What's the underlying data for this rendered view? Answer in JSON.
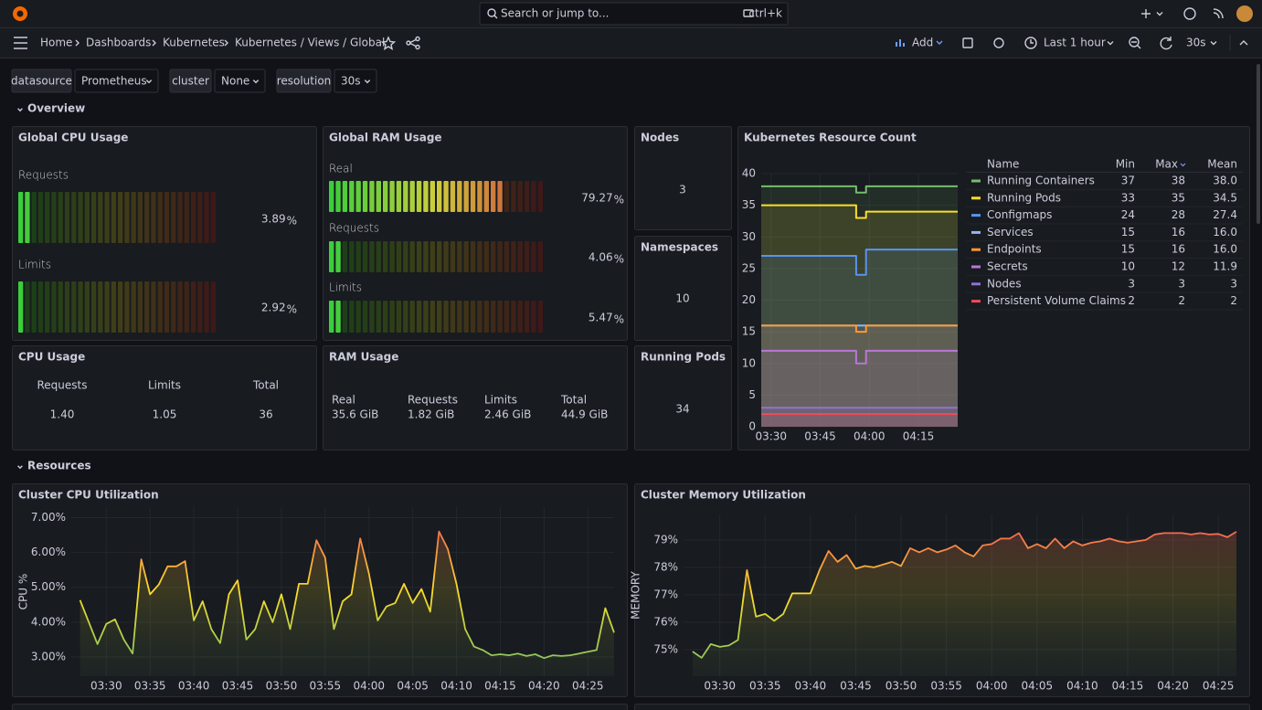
{
  "topbar": {
    "search": "Search or jump to...",
    "shortcut": "ctrl+k"
  },
  "breadcrumb": [
    "Home",
    "Dashboards",
    "Kubernetes",
    "Kubernetes / Views / Global"
  ],
  "toolbar": {
    "add": "Add",
    "time_range": "Last 1 hour",
    "refresh": "30s"
  },
  "variables": [
    {
      "label": "datasource",
      "value": "Prometheus"
    },
    {
      "label": "cluster",
      "value": "None"
    },
    {
      "label": "resolution",
      "value": "30s"
    }
  ],
  "sections": [
    "Overview",
    "Resources"
  ],
  "global_cpu": {
    "title": "Global CPU Usage",
    "min": 0,
    "max": 100,
    "gauges": [
      {
        "name": "Requests",
        "value": 3.89,
        "unit": "%",
        "color": "#73bf69"
      },
      {
        "name": "Limits",
        "value": 2.92,
        "unit": "%",
        "color": "#73bf69"
      }
    ]
  },
  "global_ram": {
    "title": "Global RAM Usage",
    "min": 0,
    "max": 100,
    "gauges": [
      {
        "name": "Real",
        "value": 79.27,
        "unit": "%",
        "color": "#f2734a"
      },
      {
        "name": "Requests",
        "value": 4.06,
        "unit": "%",
        "color": "#73bf69"
      },
      {
        "name": "Limits",
        "value": 5.47,
        "unit": "%",
        "color": "#73bf69"
      }
    ]
  },
  "stats": [
    {
      "title": "Nodes",
      "value": 3
    },
    {
      "title": "Namespaces",
      "value": 10
    },
    {
      "title": "Running Pods",
      "value": 34
    }
  ],
  "cpu_usage": {
    "title": "CPU Usage",
    "items": [
      {
        "label": "Requests",
        "value": "1.40"
      },
      {
        "label": "Limits",
        "value": "1.05"
      },
      {
        "label": "Total",
        "value": "36"
      }
    ]
  },
  "ram_usage": {
    "title": "RAM Usage",
    "items": [
      {
        "label": "Real",
        "value": "35.6 GiB"
      },
      {
        "label": "Requests",
        "value": "1.82 GiB"
      },
      {
        "label": "Limits",
        "value": "2.46 GiB"
      },
      {
        "label": "Total",
        "value": "44.9 GiB"
      }
    ]
  },
  "resource_count": {
    "type": "line",
    "title": "Kubernetes Resource Count",
    "grid": true,
    "x": [
      "03:27",
      "03:56",
      "03:56",
      "03:59",
      "03:59",
      "04:27"
    ],
    "xlim": [
      "03:27",
      "04:27"
    ],
    "xticks": [
      "03:30",
      "03:45",
      "04:00",
      "04:15"
    ],
    "ylim": [
      0,
      40
    ],
    "yticks": [
      0,
      5,
      10,
      15,
      20,
      25,
      30,
      35,
      40
    ],
    "legend_columns": [
      "Name",
      "Min",
      "Max",
      "Mean"
    ],
    "series": [
      {
        "name": "Running Containers",
        "color": "#73bf69",
        "values": [
          38,
          38,
          37,
          37,
          38,
          38
        ],
        "stats": [
          "37",
          "38",
          "38.0"
        ]
      },
      {
        "name": "Running Pods",
        "color": "#fade2a",
        "values": [
          35,
          35,
          33,
          33,
          34,
          34
        ],
        "stats": [
          "33",
          "35",
          "34.5"
        ]
      },
      {
        "name": "Configmaps",
        "color": "#5794f2",
        "values": [
          27,
          27,
          24,
          24,
          28,
          28
        ],
        "stats": [
          "24",
          "28",
          "27.4"
        ]
      },
      {
        "name": "Services",
        "color": "#8ab8ff",
        "values": [
          16,
          16,
          16,
          16,
          16,
          16
        ],
        "stats": [
          "15",
          "16",
          "16.0"
        ]
      },
      {
        "name": "Endpoints",
        "color": "#ff9830",
        "values": [
          16,
          16,
          15,
          15,
          16,
          16
        ],
        "stats": [
          "15",
          "16",
          "16.0"
        ]
      },
      {
        "name": "Secrets",
        "color": "#b877d9",
        "values": [
          12,
          12,
          10,
          10,
          12,
          12
        ],
        "stats": [
          "10",
          "12",
          "11.9"
        ]
      },
      {
        "name": "Nodes",
        "color": "#8f73d4",
        "values": [
          3,
          3,
          3,
          3,
          3,
          3
        ],
        "stats": [
          "3",
          "3",
          "3"
        ]
      },
      {
        "name": "Persistent Volume Claims",
        "color": "#f2495c",
        "values": [
          2,
          2,
          2,
          2,
          2,
          2
        ],
        "stats": [
          "2",
          "2",
          "2"
        ]
      }
    ]
  },
  "cluster_cpu": {
    "type": "line",
    "title": "Cluster CPU Utilization",
    "y_label": "CPU %",
    "grid": true,
    "x": [
      "03:27",
      "03:28",
      "03:29",
      "03:30",
      "03:31",
      "03:32",
      "03:33",
      "03:34",
      "03:35",
      "03:36",
      "03:37",
      "03:38",
      "03:39",
      "03:40",
      "03:41",
      "03:42",
      "03:43",
      "03:44",
      "03:45",
      "03:46",
      "03:47",
      "03:48",
      "03:49",
      "03:50",
      "03:51",
      "03:52",
      "03:53",
      "03:54",
      "03:55",
      "03:56",
      "03:57",
      "03:58",
      "03:59",
      "04:00",
      "04:01",
      "04:02",
      "04:03",
      "04:04",
      "04:05",
      "04:06",
      "04:07",
      "04:08",
      "04:09",
      "04:10",
      "04:11",
      "04:12",
      "04:13",
      "04:14",
      "04:15",
      "04:16",
      "04:17",
      "04:18",
      "04:19",
      "04:20",
      "04:21",
      "04:22",
      "04:23",
      "04:24",
      "04:25",
      "04:26",
      "04:27",
      "04:28"
    ],
    "xlim": [
      "03:26",
      "04:28"
    ],
    "xticks": [
      "03:30",
      "03:35",
      "03:40",
      "03:45",
      "03:50",
      "03:55",
      "04:00",
      "04:05",
      "04:10",
      "04:15",
      "04:20",
      "04:25"
    ],
    "ylim": [
      2.45,
      7.3
    ],
    "yticks": [
      {
        "value": 3,
        "label": "3.00%"
      },
      {
        "value": 4,
        "label": "4.00%"
      },
      {
        "value": 5,
        "label": "5.00%"
      },
      {
        "value": 6,
        "label": "6.00%"
      },
      {
        "value": 7,
        "label": "7.00%"
      }
    ],
    "series": [
      {
        "colors": [
          "#73bf69",
          "#fade2a",
          "#f2495c"
        ],
        "values": [
          4.63,
          4.0,
          3.37,
          3.95,
          4.08,
          3.5,
          3.1,
          5.8,
          4.8,
          5.08,
          5.6,
          5.6,
          5.75,
          4.05,
          4.6,
          3.8,
          3.4,
          4.8,
          5.2,
          3.5,
          3.8,
          4.6,
          4.0,
          4.8,
          3.8,
          5.1,
          5.1,
          6.35,
          5.85,
          3.8,
          4.6,
          4.8,
          6.4,
          5.4,
          4.05,
          4.45,
          4.55,
          5.1,
          4.55,
          4.95,
          4.3,
          6.6,
          6.1,
          5.1,
          3.8,
          3.3,
          3.2,
          3.05,
          3.08,
          3.05,
          3.1,
          3.03,
          3.08,
          2.97,
          3.05,
          3.03,
          3.05,
          3.1,
          3.15,
          3.2,
          4.4,
          3.7
        ]
      }
    ]
  },
  "cluster_memory": {
    "type": "line",
    "title": "Cluster Memory Utilization",
    "y_label": "MEMORY",
    "grid": true,
    "x": [
      "03:27",
      "03:28",
      "03:29",
      "03:30",
      "03:31",
      "03:32",
      "03:33",
      "03:34",
      "03:35",
      "03:36",
      "03:37",
      "03:38",
      "03:39",
      "03:40",
      "03:41",
      "03:42",
      "03:43",
      "03:44",
      "03:45",
      "03:46",
      "03:47",
      "03:48",
      "03:49",
      "03:50",
      "03:51",
      "03:52",
      "03:53",
      "03:54",
      "03:55",
      "03:56",
      "03:57",
      "03:58",
      "03:59",
      "04:00",
      "04:01",
      "04:02",
      "04:03",
      "04:04",
      "04:05",
      "04:06",
      "04:07",
      "04:08",
      "04:09",
      "04:10",
      "04:11",
      "04:12",
      "04:13",
      "04:14",
      "04:15",
      "04:16",
      "04:17",
      "04:18",
      "04:19",
      "04:20",
      "04:21",
      "04:22",
      "04:23",
      "04:24",
      "04:25",
      "04:26",
      "04:27"
    ],
    "xlim": [
      "03:26",
      "04:27"
    ],
    "xticks": [
      "03:30",
      "03:35",
      "03:40",
      "03:45",
      "03:50",
      "03:55",
      "04:00",
      "04:05",
      "04:10",
      "04:15",
      "04:20",
      "04:25"
    ],
    "ylim": [
      74.03,
      79.93
    ],
    "yticks": [
      {
        "value": 75,
        "label": "75%"
      },
      {
        "value": 76,
        "label": "76%"
      },
      {
        "value": 77,
        "label": "77%"
      },
      {
        "value": 78,
        "label": "78%"
      },
      {
        "value": 79,
        "label": "79%"
      }
    ],
    "series": [
      {
        "colors": [
          "#73bf69",
          "#fade2a",
          "#f2495c"
        ],
        "values": [
          74.93,
          74.7,
          75.2,
          75.1,
          75.15,
          75.35,
          77.9,
          76.2,
          76.3,
          76.05,
          76.3,
          77.05,
          77.05,
          77.05,
          77.9,
          78.6,
          78.2,
          78.45,
          77.95,
          78.05,
          78.0,
          78.1,
          78.2,
          78.05,
          78.7,
          78.55,
          78.7,
          78.55,
          78.65,
          78.8,
          78.55,
          78.4,
          78.8,
          78.85,
          79.05,
          79.05,
          79.25,
          78.7,
          78.85,
          78.7,
          79.05,
          78.7,
          78.95,
          78.8,
          78.9,
          78.95,
          79.05,
          78.95,
          78.9,
          78.95,
          79.0,
          79.2,
          79.25,
          79.25,
          79.25,
          79.2,
          79.25,
          79.2,
          79.22,
          79.1,
          79.3
        ]
      }
    ]
  }
}
